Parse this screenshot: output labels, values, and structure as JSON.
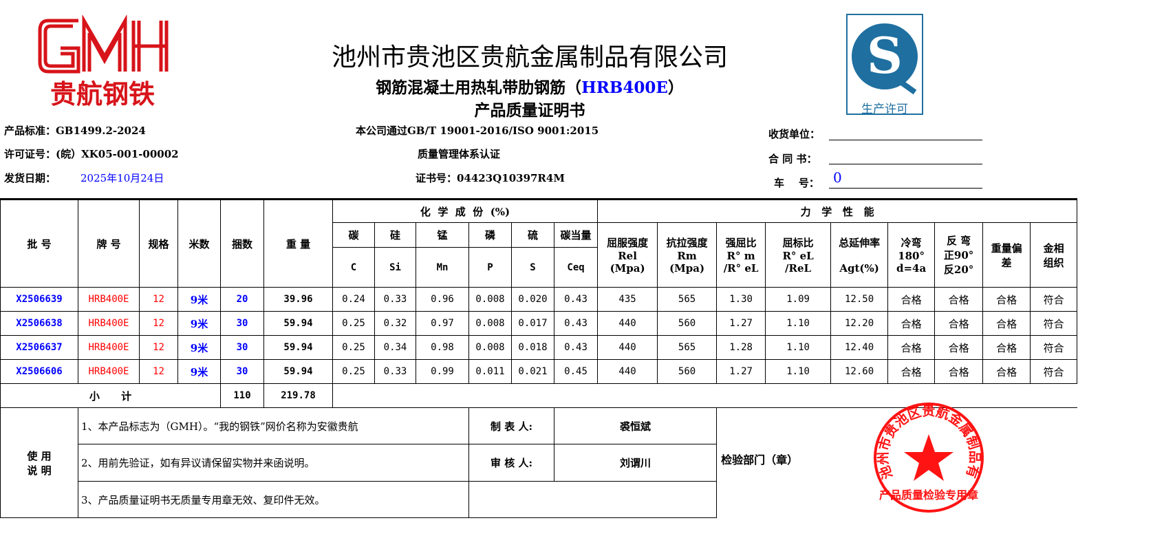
{
  "logo": {
    "brand": "GMH",
    "name": "贵航钢铁",
    "color": "#d7141a"
  },
  "qs_logo": {
    "label": "生产许可",
    "color": "#1f6fa0"
  },
  "header": {
    "company": "池州市贵池区贵航金属制品有限公司",
    "product_prefix": "钢筋混凝土用热轧带肋钢筋（",
    "product_grade": "HRB400E",
    "product_suffix": "）",
    "doc_title": "产品质量证明书"
  },
  "info": {
    "standard": "产品标准：GB1499.2-2024",
    "license": "许可证号：(皖）XK05-001-00002",
    "ship_date_label": "发货日期：",
    "ship_date": "2025年10月24日",
    "cert_line1": "本公司通过GB/T 19001-2016/ISO 9001:2015",
    "cert_line2": "质量管理体系认证",
    "cert_no": "证书号：04423Q10397R4M",
    "receiver_label": "收货单位：",
    "receiver": "",
    "contract_label": "合 同 书：",
    "contract": "",
    "vehicle_label": "车    号：",
    "vehicle": "0"
  },
  "table": {
    "headers": {
      "batch": "批 号",
      "brand": "牌 号",
      "spec": "规格",
      "length": "米数",
      "bundles": "捆数",
      "weight": "重 量",
      "chem": "化  学  成  份  (%)",
      "mech": "力   学   性   能",
      "chem_cols": [
        {
          "cn": "碳",
          "sym": "C"
        },
        {
          "cn": "硅",
          "sym": "Si"
        },
        {
          "cn": "锰",
          "sym": "Mn"
        },
        {
          "cn": "磷",
          "sym": "P"
        },
        {
          "cn": "硫",
          "sym": "S"
        },
        {
          "cn": "碳当量",
          "sym": "Ceq"
        }
      ],
      "mech_cols": [
        {
          "l1": "屈服强度",
          "l2": "Rel",
          "l3": "(Mpa)"
        },
        {
          "l1": "抗拉强度",
          "l2": "Rm",
          "l3": "(Mpa)"
        },
        {
          "l1": "强屈比",
          "l2": "R° m",
          "l3": "/R° eL"
        },
        {
          "l1": "屈标比",
          "l2": "R° eL",
          "l3": "/ReL"
        },
        {
          "l1": "总延伸率",
          "l2": "",
          "l3": "Agt(%)"
        },
        {
          "l1": "冷弯",
          "l2": "180°",
          "l3": "d=4a"
        },
        {
          "l1": "反 弯",
          "l2": "正90°",
          "l3": "反20°"
        },
        {
          "l1": "重量偏",
          "l2": "差",
          "l3": ""
        },
        {
          "l1": "金相",
          "l2": "组织",
          "l3": ""
        }
      ]
    },
    "rows": [
      {
        "batch": "X2506639",
        "brand": "HRB400E",
        "spec": "12",
        "length": "9米",
        "bundles": "20",
        "weight": "39.96",
        "c": "0.24",
        "si": "0.33",
        "mn": "0.96",
        "p": "0.008",
        "s": "0.020",
        "ceq": "0.43",
        "rel": "435",
        "rm": "565",
        "ratio1": "1.30",
        "ratio2": "1.09",
        "agt": "12.50",
        "bend": "合格",
        "rebend": "合格",
        "wdev": "合格",
        "micro": "符合"
      },
      {
        "batch": "X2506638",
        "brand": "HRB400E",
        "spec": "12",
        "length": "9米",
        "bundles": "30",
        "weight": "59.94",
        "c": "0.25",
        "si": "0.32",
        "mn": "0.97",
        "p": "0.008",
        "s": "0.017",
        "ceq": "0.43",
        "rel": "440",
        "rm": "560",
        "ratio1": "1.27",
        "ratio2": "1.10",
        "agt": "12.20",
        "bend": "合格",
        "rebend": "合格",
        "wdev": "合格",
        "micro": "符合"
      },
      {
        "batch": "X2506637",
        "brand": "HRB400E",
        "spec": "12",
        "length": "9米",
        "bundles": "30",
        "weight": "59.94",
        "c": "0.25",
        "si": "0.34",
        "mn": "0.98",
        "p": "0.008",
        "s": "0.018",
        "ceq": "0.43",
        "rel": "440",
        "rm": "565",
        "ratio1": "1.28",
        "ratio2": "1.10",
        "agt": "12.40",
        "bend": "合格",
        "rebend": "合格",
        "wdev": "合格",
        "micro": "符合"
      },
      {
        "batch": "X2506606",
        "brand": "HRB400E",
        "spec": "12",
        "length": "9米",
        "bundles": "30",
        "weight": "59.94",
        "c": "0.25",
        "si": "0.33",
        "mn": "0.99",
        "p": "0.011",
        "s": "0.021",
        "ceq": "0.45",
        "rel": "440",
        "rm": "560",
        "ratio1": "1.27",
        "ratio2": "1.10",
        "agt": "12.60",
        "bend": "合格",
        "rebend": "合格",
        "wdev": "合格",
        "micro": "符合"
      }
    ],
    "subtotal": {
      "label": "小      计",
      "bundles": "110",
      "weight": "219.78"
    }
  },
  "notes": {
    "label1": "使 用",
    "label2": "说 明",
    "items": [
      "1、本产品标志为（GMH）。“我的钢铁”网价名称为安徽贵航",
      "2、用前先验证，如有异议请保留实物并来函说明。",
      "3、产品质量证明书无质量专用章无效、复印件无效。"
    ],
    "maker_label": "制 表 人:",
    "maker": "裘恒斌",
    "reviewer_label": "审 核 人:",
    "reviewer": "刘谓川",
    "inspection_label": "检验部门（章）"
  },
  "stamp": {
    "text_arc": "池州市贵池区贵航金属制品有限公司",
    "text_bottom": "产品质量检验专用章",
    "color": "#ff0000"
  }
}
